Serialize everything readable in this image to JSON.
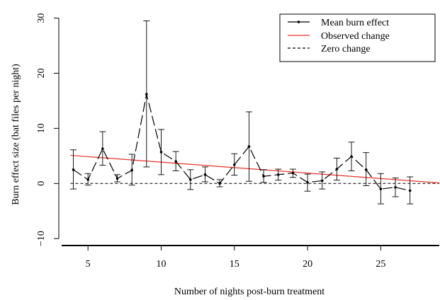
{
  "chart_data": {
    "type": "line",
    "title": "",
    "xlabel": "Number of nights post-burn treatment",
    "ylabel": "Burn effect size (bat files per night)",
    "xlim": [
      3.2,
      29
    ],
    "ylim": [
      -11,
      32
    ],
    "xticks": [
      5,
      10,
      15,
      20,
      25
    ],
    "yticks": [
      -10,
      0,
      10,
      20,
      30
    ],
    "grid": false,
    "legend_position": "top-right",
    "legend": [
      {
        "label": "Mean burn effect",
        "style": "solid-dot",
        "color": "#000000"
      },
      {
        "label": "Observed change",
        "style": "solid",
        "color": "#e8332a"
      },
      {
        "label": "Zero change",
        "style": "dashed",
        "color": "#000000"
      }
    ],
    "series": [
      {
        "name": "Mean burn effect",
        "x": [
          4,
          5,
          6,
          7,
          8,
          9,
          10,
          11,
          12,
          13,
          14,
          15,
          16,
          17,
          18,
          19,
          20,
          21,
          22,
          23,
          24,
          25,
          26,
          27
        ],
        "y": [
          2.5,
          0.7,
          6.3,
          0.9,
          2.4,
          16.2,
          5.7,
          4.0,
          0.7,
          1.6,
          0.0,
          3.4,
          6.7,
          1.3,
          1.6,
          1.9,
          0.2,
          0.5,
          2.6,
          4.9,
          2.5,
          -1.0,
          -0.7,
          -1.3
        ],
        "lower": [
          -1.0,
          -0.3,
          3.3,
          0.3,
          -0.3,
          3.0,
          1.6,
          2.3,
          -1.1,
          0.3,
          -0.6,
          1.5,
          0.4,
          0.2,
          0.6,
          1.1,
          -1.4,
          -1.0,
          0.6,
          2.3,
          -0.4,
          -3.7,
          -2.4,
          -3.7
        ],
        "upper": [
          6.1,
          1.8,
          9.4,
          1.6,
          5.3,
          29.5,
          9.8,
          5.8,
          2.5,
          3.0,
          0.7,
          5.4,
          13.0,
          2.5,
          2.6,
          2.6,
          1.7,
          2.1,
          4.6,
          7.5,
          5.6,
          1.8,
          1.0,
          1.2
        ],
        "color": "#000000"
      },
      {
        "name": "Observed change",
        "x": [
          3.8,
          29
        ],
        "y": [
          5.1,
          0.1
        ],
        "color": "#e8332a"
      },
      {
        "name": "Zero change",
        "x": [
          3.8,
          29
        ],
        "y": [
          0,
          0
        ],
        "color": "#000000"
      }
    ]
  }
}
